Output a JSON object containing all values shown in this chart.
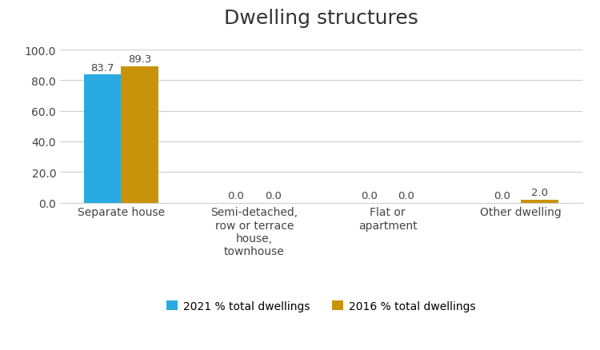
{
  "title": "Dwelling structures",
  "categories": [
    "Separate house",
    "Semi-detached,\nrow or terrace\nhouse,\ntownhouse",
    "Flat or\napartment",
    "Other dwelling"
  ],
  "series": [
    {
      "label": "2021 % total dwellings",
      "values": [
        83.7,
        0.0,
        0.0,
        0.0
      ],
      "color": "#29abe2"
    },
    {
      "label": "2016 % total dwellings",
      "values": [
        89.3,
        0.0,
        0.0,
        2.0
      ],
      "color": "#c8920a"
    }
  ],
  "ylim": [
    0,
    110
  ],
  "yticks": [
    0.0,
    20.0,
    40.0,
    60.0,
    80.0,
    100.0
  ],
  "bar_width": 0.28,
  "background_color": "#ffffff",
  "title_fontsize": 18,
  "tick_fontsize": 10,
  "legend_fontsize": 10,
  "value_fontsize": 9.5
}
